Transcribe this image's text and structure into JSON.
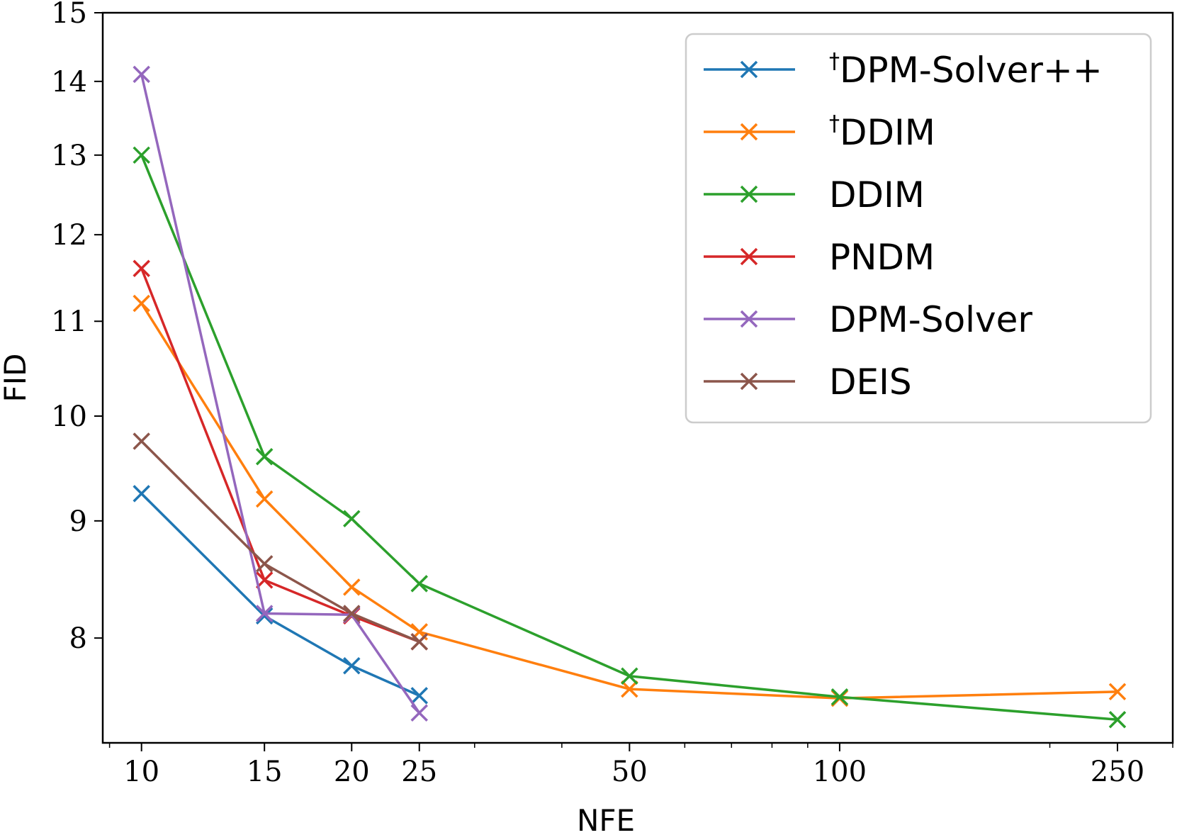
{
  "chart_data": {
    "type": "line",
    "title": "",
    "xlabel": "NFE",
    "ylabel": "FID",
    "xscale": "log",
    "yscale": "log",
    "xlim": [
      8.8,
      300
    ],
    "ylim": [
      7.2,
      15
    ],
    "xticks": [
      10,
      15,
      20,
      25,
      50,
      100,
      250
    ],
    "xtick_labels": [
      "10",
      "15",
      "20",
      "25",
      "50",
      "100",
      "250"
    ],
    "yticks": [
      8,
      9,
      10,
      11,
      12,
      13,
      14,
      15
    ],
    "ytick_labels": [
      "8",
      "9",
      "10",
      "11",
      "12",
      "13",
      "14",
      "15"
    ],
    "legend_position": "top-right",
    "grid": false,
    "series": [
      {
        "name": "DPM-Solver++",
        "dagger": "†",
        "color": "#1f77b4",
        "x": [
          10,
          15,
          20,
          25
        ],
        "y": [
          9.25,
          8.18,
          7.78,
          7.55
        ]
      },
      {
        "name": "DDIM",
        "dagger": "†",
        "color": "#ff7f0e",
        "x": [
          10,
          15,
          20,
          25,
          50,
          100,
          250
        ],
        "y": [
          11.2,
          9.2,
          8.42,
          8.05,
          7.6,
          7.53,
          7.58
        ]
      },
      {
        "name": "DDIM",
        "dagger": "",
        "color": "#2ca02c",
        "x": [
          10,
          15,
          20,
          25,
          50,
          100,
          250
        ],
        "y": [
          13.0,
          9.6,
          9.02,
          8.45,
          7.7,
          7.54,
          7.37
        ]
      },
      {
        "name": "PNDM",
        "dagger": "",
        "color": "#d62728",
        "x": [
          10,
          15,
          20,
          25
        ],
        "y": [
          11.6,
          8.48,
          8.18,
          7.97
        ]
      },
      {
        "name": "DPM-Solver",
        "dagger": "",
        "color": "#9467bd",
        "x": [
          10,
          15,
          20,
          25
        ],
        "y": [
          14.1,
          8.2,
          8.19,
          7.42
        ]
      },
      {
        "name": "DEIS",
        "dagger": "",
        "color": "#8c564b",
        "x": [
          10,
          15,
          20,
          25
        ],
        "y": [
          9.75,
          8.62,
          8.2,
          7.97
        ]
      }
    ]
  }
}
